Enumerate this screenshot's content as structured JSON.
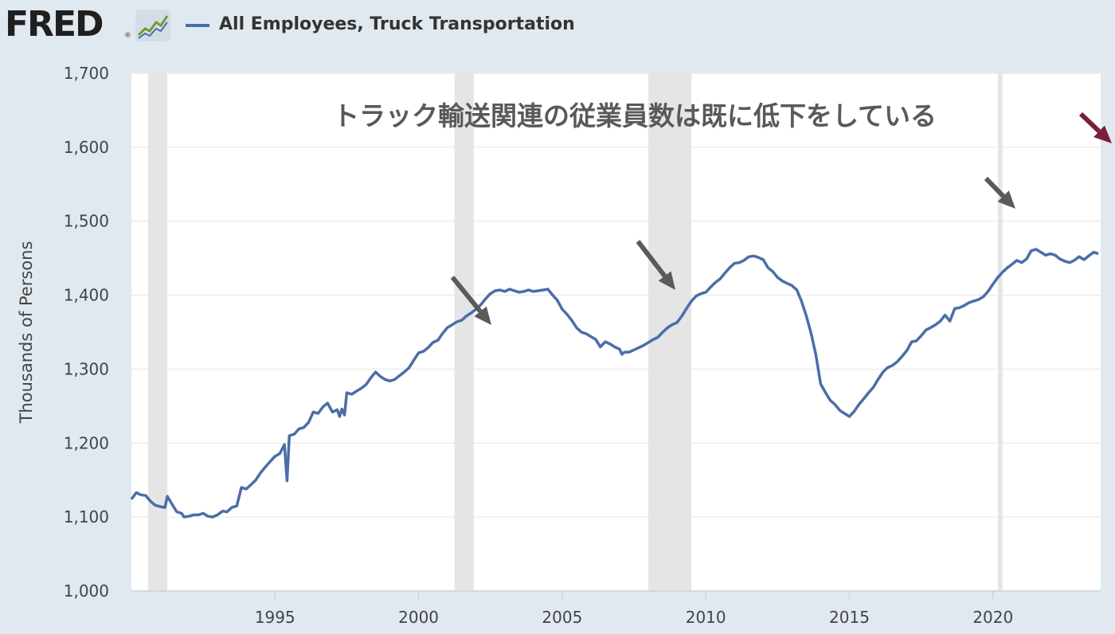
{
  "header": {
    "logo_text": "FRED",
    "logo_reg": "®",
    "graph_icon": "line-chart-icon",
    "series_title": "All Employees, Truck Transportation",
    "series_color": "#4a6ea8"
  },
  "chart_data": {
    "type": "line",
    "title": "All Employees, Truck Transportation",
    "ylabel": "Thousands of Persons",
    "xlabel": "",
    "xlim": [
      1990.0,
      2023.75
    ],
    "ylim": [
      1000,
      1700
    ],
    "x_ticks": [
      1995,
      2000,
      2005,
      2010,
      2015,
      2020
    ],
    "y_ticks": [
      1000,
      1100,
      1200,
      1300,
      1400,
      1500,
      1600,
      1700
    ],
    "y_tick_labels": [
      "1,000",
      "1,100",
      "1,200",
      "1,300",
      "1,400",
      "1,500",
      "1,600",
      "1,700"
    ],
    "grid": true,
    "recessions": [
      [
        1990.58,
        1991.25
      ],
      [
        2001.25,
        2001.92
      ],
      [
        2008.0,
        2009.5
      ],
      [
        2020.17,
        2020.33
      ]
    ],
    "annotation": "トラック輸送関連の従業員数は既に低下をしている",
    "arrow_colors": {
      "gray": "#5a5a5a",
      "red": "#7a1e3c"
    },
    "series": [
      {
        "name": "All Employees, Truck Transportation",
        "color": "#4a6ea8",
        "points": [
          [
            1990.0,
            1124
          ],
          [
            1990.17,
            1133
          ],
          [
            1990.33,
            1130
          ],
          [
            1990.5,
            1129
          ],
          [
            1990.67,
            1121
          ],
          [
            1990.83,
            1116
          ],
          [
            1991.0,
            1114
          ],
          [
            1991.17,
            1113
          ],
          [
            1991.25,
            1128
          ],
          [
            1991.42,
            1117
          ],
          [
            1991.58,
            1107
          ],
          [
            1991.75,
            1105
          ],
          [
            1991.83,
            1100
          ],
          [
            1992.0,
            1101
          ],
          [
            1992.17,
            1103
          ],
          [
            1992.33,
            1103
          ],
          [
            1992.5,
            1105
          ],
          [
            1992.67,
            1101
          ],
          [
            1992.83,
            1100
          ],
          [
            1993.0,
            1103
          ],
          [
            1993.17,
            1108
          ],
          [
            1993.33,
            1107
          ],
          [
            1993.5,
            1113
          ],
          [
            1993.67,
            1115
          ],
          [
            1993.83,
            1140
          ],
          [
            1994.0,
            1138
          ],
          [
            1994.17,
            1144
          ],
          [
            1994.33,
            1150
          ],
          [
            1994.5,
            1160
          ],
          [
            1994.67,
            1168
          ],
          [
            1994.83,
            1175
          ],
          [
            1995.0,
            1182
          ],
          [
            1995.17,
            1186
          ],
          [
            1995.33,
            1198
          ],
          [
            1995.42,
            1149
          ],
          [
            1995.5,
            1210
          ],
          [
            1995.67,
            1212
          ],
          [
            1995.83,
            1219
          ],
          [
            1996.0,
            1221
          ],
          [
            1996.17,
            1228
          ],
          [
            1996.33,
            1242
          ],
          [
            1996.5,
            1240
          ],
          [
            1996.67,
            1249
          ],
          [
            1996.83,
            1254
          ],
          [
            1997.0,
            1242
          ],
          [
            1997.17,
            1245
          ],
          [
            1997.25,
            1236
          ],
          [
            1997.33,
            1246
          ],
          [
            1997.42,
            1238
          ],
          [
            1997.5,
            1268
          ],
          [
            1997.67,
            1266
          ],
          [
            1997.83,
            1270
          ],
          [
            1998.0,
            1274
          ],
          [
            1998.17,
            1279
          ],
          [
            1998.33,
            1288
          ],
          [
            1998.5,
            1296
          ],
          [
            1998.67,
            1290
          ],
          [
            1998.83,
            1286
          ],
          [
            1999.0,
            1284
          ],
          [
            1999.17,
            1286
          ],
          [
            1999.33,
            1291
          ],
          [
            1999.5,
            1296
          ],
          [
            1999.67,
            1302
          ],
          [
            1999.83,
            1312
          ],
          [
            2000.0,
            1322
          ],
          [
            2000.17,
            1324
          ],
          [
            2000.33,
            1329
          ],
          [
            2000.5,
            1336
          ],
          [
            2000.67,
            1339
          ],
          [
            2000.83,
            1348
          ],
          [
            2001.0,
            1356
          ],
          [
            2001.17,
            1360
          ],
          [
            2001.33,
            1364
          ],
          [
            2001.5,
            1366
          ],
          [
            2001.67,
            1372
          ],
          [
            2001.83,
            1376
          ],
          [
            2002.0,
            1381
          ],
          [
            2002.17,
            1387
          ],
          [
            2002.33,
            1395
          ],
          [
            2002.5,
            1402
          ],
          [
            2002.67,
            1406
          ],
          [
            2002.83,
            1407
          ],
          [
            2003.0,
            1405
          ],
          [
            2003.17,
            1408
          ],
          [
            2003.33,
            1406
          ],
          [
            2003.5,
            1404
          ],
          [
            2003.67,
            1405
          ],
          [
            2003.83,
            1407
          ],
          [
            2004.0,
            1405
          ],
          [
            2004.17,
            1406
          ],
          [
            2004.33,
            1407
          ],
          [
            2004.5,
            1408
          ],
          [
            2004.67,
            1400
          ],
          [
            2004.83,
            1393
          ],
          [
            2005.0,
            1381
          ],
          [
            2005.17,
            1374
          ],
          [
            2005.33,
            1366
          ],
          [
            2005.5,
            1356
          ],
          [
            2005.67,
            1350
          ],
          [
            2005.83,
            1348
          ],
          [
            2006.0,
            1344
          ],
          [
            2006.17,
            1340
          ],
          [
            2006.33,
            1330
          ],
          [
            2006.5,
            1337
          ],
          [
            2006.67,
            1334
          ],
          [
            2006.83,
            1330
          ],
          [
            2007.0,
            1327
          ],
          [
            2007.08,
            1320
          ],
          [
            2007.17,
            1323
          ],
          [
            2007.33,
            1323
          ],
          [
            2007.5,
            1326
          ],
          [
            2007.67,
            1329
          ],
          [
            2007.83,
            1332
          ],
          [
            2008.0,
            1336
          ],
          [
            2008.17,
            1340
          ],
          [
            2008.33,
            1343
          ],
          [
            2008.5,
            1350
          ],
          [
            2008.67,
            1356
          ],
          [
            2008.83,
            1360
          ],
          [
            2009.0,
            1363
          ],
          [
            2009.17,
            1372
          ],
          [
            2009.33,
            1382
          ],
          [
            2009.5,
            1392
          ],
          [
            2009.67,
            1399
          ],
          [
            2009.83,
            1402
          ],
          [
            2010.0,
            1404
          ],
          [
            2010.17,
            1411
          ],
          [
            2010.33,
            1417
          ],
          [
            2010.5,
            1422
          ],
          [
            2010.67,
            1430
          ],
          [
            2010.83,
            1437
          ],
          [
            2011.0,
            1443
          ],
          [
            2011.17,
            1444
          ],
          [
            2011.33,
            1447
          ],
          [
            2011.5,
            1452
          ],
          [
            2011.67,
            1453
          ],
          [
            2011.83,
            1451
          ],
          [
            2012.0,
            1448
          ],
          [
            2012.17,
            1437
          ],
          [
            2012.33,
            1432
          ],
          [
            2012.5,
            1424
          ],
          [
            2012.67,
            1419
          ],
          [
            2012.83,
            1416
          ],
          [
            2013.0,
            1413
          ],
          [
            2013.17,
            1407
          ],
          [
            2013.33,
            1392
          ],
          [
            2013.5,
            1372
          ],
          [
            2013.67,
            1348
          ],
          [
            2013.83,
            1320
          ],
          [
            2014.0,
            1280
          ],
          [
            2014.17,
            1268
          ],
          [
            2014.33,
            1258
          ],
          [
            2014.5,
            1252
          ],
          [
            2014.67,
            1244
          ],
          [
            2014.83,
            1240
          ],
          [
            2015.0,
            1236
          ],
          [
            2015.17,
            1243
          ],
          [
            2015.33,
            1252
          ],
          [
            2015.5,
            1260
          ],
          [
            2015.67,
            1268
          ],
          [
            2015.83,
            1275
          ],
          [
            2016.0,
            1286
          ],
          [
            2016.17,
            1296
          ],
          [
            2016.33,
            1302
          ],
          [
            2016.5,
            1305
          ],
          [
            2016.67,
            1310
          ],
          [
            2016.83,
            1317
          ],
          [
            2017.0,
            1325
          ],
          [
            2017.17,
            1337
          ],
          [
            2017.33,
            1338
          ],
          [
            2017.5,
            1345
          ],
          [
            2017.67,
            1353
          ],
          [
            2017.83,
            1356
          ],
          [
            2018.0,
            1360
          ],
          [
            2018.17,
            1365
          ],
          [
            2018.33,
            1373
          ],
          [
            2018.5,
            1365
          ],
          [
            2018.67,
            1382
          ],
          [
            2018.83,
            1383
          ],
          [
            2019.0,
            1386
          ],
          [
            2019.17,
            1390
          ],
          [
            2019.33,
            1392
          ],
          [
            2019.5,
            1394
          ],
          [
            2019.67,
            1398
          ],
          [
            2019.83,
            1405
          ],
          [
            2020.0,
            1415
          ],
          [
            2020.17,
            1424
          ],
          [
            2020.33,
            1431
          ],
          [
            2020.5,
            1437
          ],
          [
            2020.67,
            1442
          ],
          [
            2020.83,
            1447
          ],
          [
            2021.0,
            1444
          ],
          [
            2021.17,
            1449
          ],
          [
            2021.33,
            1460
          ],
          [
            2021.5,
            1462
          ],
          [
            2021.67,
            1458
          ],
          [
            2021.83,
            1454
          ],
          [
            2022.0,
            1456
          ],
          [
            2022.17,
            1454
          ],
          [
            2022.33,
            1449
          ],
          [
            2022.5,
            1446
          ],
          [
            2022.67,
            1444
          ],
          [
            2022.83,
            1447
          ],
          [
            2023.0,
            1452
          ],
          [
            2023.17,
            1448
          ],
          [
            2023.33,
            1453
          ],
          [
            2023.5,
            1458
          ],
          [
            2023.67,
            1456
          ]
        ]
      }
    ]
  }
}
